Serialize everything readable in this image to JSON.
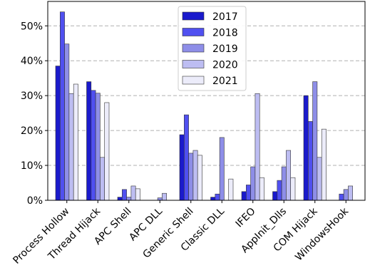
{
  "chart_data": {
    "type": "bar",
    "categories": [
      "Process Hollow",
      "Thread Hijack",
      "APC Shell",
      "APC DLL",
      "Generic Shell",
      "Classic DLL",
      "IFEO",
      "AppInit_Dlls",
      "COM Hijack",
      "WindowsHook"
    ],
    "series": [
      {
        "name": "2017",
        "color": "#1a1acc",
        "values": [
          38.5,
          34.0,
          0.9,
          0.0,
          18.8,
          0.9,
          2.5,
          2.5,
          30.0,
          0.0
        ]
      },
      {
        "name": "2018",
        "color": "#5050f0",
        "values": [
          54.0,
          31.5,
          3.1,
          0.0,
          24.5,
          1.8,
          4.4,
          5.7,
          22.6,
          1.8
        ]
      },
      {
        "name": "2019",
        "color": "#8e8ee8",
        "values": [
          44.8,
          30.7,
          0.9,
          0.7,
          13.5,
          18.0,
          9.6,
          9.6,
          34.0,
          3.1
        ]
      },
      {
        "name": "2020",
        "color": "#bdbdf2",
        "values": [
          30.6,
          12.3,
          4.1,
          2.0,
          14.3,
          0.0,
          30.6,
          14.3,
          12.3,
          4.1
        ]
      },
      {
        "name": "2021",
        "color": "#ececfa",
        "values": [
          33.3,
          28.0,
          3.3,
          0.0,
          12.9,
          6.1,
          6.5,
          6.5,
          20.4,
          0.0
        ]
      }
    ],
    "yticks": [
      "0%",
      "10%",
      "20%",
      "30%",
      "40%",
      "50%"
    ],
    "ylim": [
      0,
      57
    ],
    "legend_position": "top-center",
    "grid": "horizontal dashed"
  }
}
